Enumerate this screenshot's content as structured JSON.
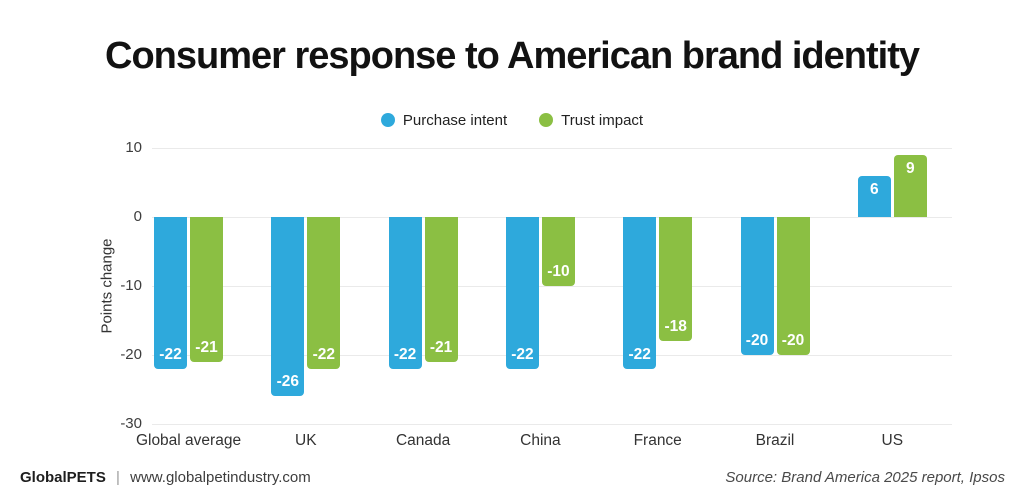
{
  "title": "Consumer response to American brand identity",
  "chart_data": {
    "type": "bar",
    "categories": [
      "Global average",
      "UK",
      "Canada",
      "China",
      "France",
      "Brazil",
      "US"
    ],
    "series": [
      {
        "name": "Purchase intent",
        "color": "#2EA9DC",
        "values": [
          -22,
          -26,
          -22,
          -22,
          -22,
          -20,
          6
        ]
      },
      {
        "name": "Trust impact",
        "color": "#8BBF43",
        "values": [
          -21,
          -22,
          -21,
          -10,
          -18,
          -20,
          9
        ]
      }
    ],
    "title": "Consumer response to American brand identity",
    "xlabel": "",
    "ylabel": "Points change",
    "ylim": [
      -30,
      10
    ],
    "yticks": [
      10,
      0,
      -10,
      -20,
      -30
    ],
    "grid": true,
    "legend_position": "top-center",
    "bar_value_labels": true
  },
  "footer": {
    "brand": "GlobalPETS",
    "divider": "|",
    "site": "www.globalpetindustry.com",
    "source": "Source: Brand America 2025 report, Ipsos"
  }
}
